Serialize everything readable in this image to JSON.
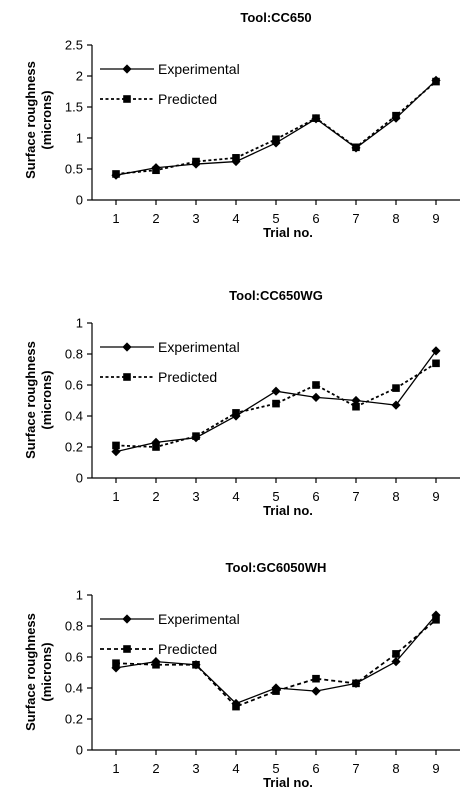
{
  "chart_data": [
    {
      "type": "line",
      "title": "Tool:CC650",
      "xlabel": "Trial no.",
      "ylabel": "Surface roughness (microns)",
      "categories": [
        "1",
        "2",
        "3",
        "4",
        "5",
        "6",
        "7",
        "8",
        "9"
      ],
      "yticks": [
        "0",
        "0.5",
        "1",
        "1.5",
        "2",
        "2.5"
      ],
      "ylim": [
        0,
        2.5
      ],
      "grid": false,
      "legend": "top-left",
      "series": [
        {
          "name": "Experimental",
          "marker": "diamond",
          "line": "solid",
          "values": [
            0.4,
            0.52,
            0.58,
            0.62,
            0.92,
            1.31,
            0.84,
            1.32,
            1.93
          ]
        },
        {
          "name": "Predicted",
          "marker": "square",
          "line": "dotted",
          "values": [
            0.42,
            0.48,
            0.62,
            0.68,
            0.98,
            1.32,
            0.85,
            1.36,
            1.91
          ]
        }
      ]
    },
    {
      "type": "line",
      "title": "Tool:CC650WG",
      "xlabel": "Trial no.",
      "ylabel": "Surface roughness (microns)",
      "categories": [
        "1",
        "2",
        "3",
        "4",
        "5",
        "6",
        "7",
        "8",
        "9"
      ],
      "yticks": [
        "0",
        "0.2",
        "0.4",
        "0.6",
        "0.8",
        "1"
      ],
      "ylim": [
        0,
        1
      ],
      "grid": false,
      "legend": "top-left",
      "series": [
        {
          "name": "Experimental",
          "marker": "diamond",
          "line": "solid",
          "values": [
            0.17,
            0.23,
            0.26,
            0.4,
            0.56,
            0.52,
            0.5,
            0.47,
            0.82
          ]
        },
        {
          "name": "Predicted",
          "marker": "square",
          "line": "dotted",
          "values": [
            0.21,
            0.2,
            0.27,
            0.42,
            0.48,
            0.6,
            0.46,
            0.58,
            0.74
          ]
        }
      ]
    },
    {
      "type": "line",
      "title": "Tool:GC6050WH",
      "xlabel": "Trial no.",
      "ylabel": "Surface roughness (microns)",
      "categories": [
        "1",
        "2",
        "3",
        "4",
        "5",
        "6",
        "7",
        "8",
        "9"
      ],
      "yticks": [
        "0",
        "0.2",
        "0.4",
        "0.6",
        "0.8",
        "1"
      ],
      "ylim": [
        0,
        1
      ],
      "grid": false,
      "legend": "top-left",
      "series": [
        {
          "name": "Experimental",
          "marker": "diamond",
          "line": "solid",
          "values": [
            0.53,
            0.57,
            0.55,
            0.3,
            0.4,
            0.38,
            0.43,
            0.57,
            0.87
          ]
        },
        {
          "name": "Predicted",
          "marker": "square",
          "line": "dashed",
          "values": [
            0.56,
            0.55,
            0.55,
            0.28,
            0.38,
            0.46,
            0.43,
            0.62,
            0.84
          ]
        }
      ]
    }
  ]
}
